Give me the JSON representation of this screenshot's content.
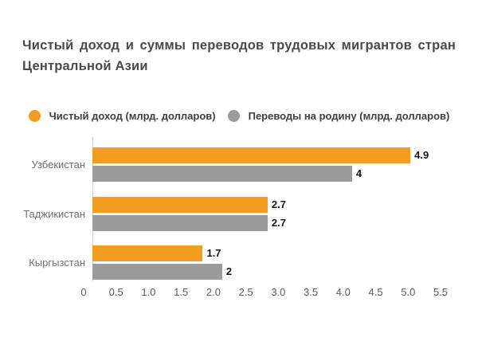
{
  "title": {
    "line1": "Чистый доход и суммы переводов трудовых мигрантов стран",
    "line2": "Центральной Азии"
  },
  "legend": {
    "items": [
      {
        "label": "Чистый доход (млрд. долларов)",
        "color": "#F49C20"
      },
      {
        "label": "Переводы на родину (млрд. долларов)",
        "color": "#9B9B9B"
      }
    ]
  },
  "chart_data": {
    "type": "bar",
    "orientation": "horizontal",
    "title": "Чистый доход и суммы переводов трудовых мигрантов стран Центральной Азии",
    "categories": [
      "Узбекистан",
      "Таджикистан",
      "Кыргызстан"
    ],
    "series": [
      {
        "name": "Чистый доход (млрд. долларов)",
        "color": "#F49C20",
        "values": [
          4.9,
          2.7,
          1.7
        ],
        "value_labels": [
          "4.9",
          "2.7",
          "1.7"
        ]
      },
      {
        "name": "Переводы на родину (млрд. долларов)",
        "color": "#9B9B9B",
        "values": [
          4,
          2.7,
          2
        ],
        "value_labels": [
          "4",
          "2.7",
          "2"
        ]
      }
    ],
    "xlim": [
      0,
      5.5
    ],
    "x_ticks": [
      "0",
      "0.5",
      "1.0",
      "1.5",
      "2.0",
      "2.5",
      "3.0",
      "3.5",
      "4.0",
      "4.5",
      "5.0",
      "5.5"
    ],
    "x_tick_values": [
      0,
      0.5,
      1.0,
      1.5,
      2.0,
      2.5,
      3.0,
      3.5,
      4.0,
      4.5,
      5.0,
      5.5
    ],
    "xlabel": "",
    "ylabel": "",
    "grid": false,
    "legend_position": "top",
    "value_label_color": "#141414",
    "category_label_color": "#6e6e6e",
    "axis_line_color": "#cfcfcf"
  }
}
